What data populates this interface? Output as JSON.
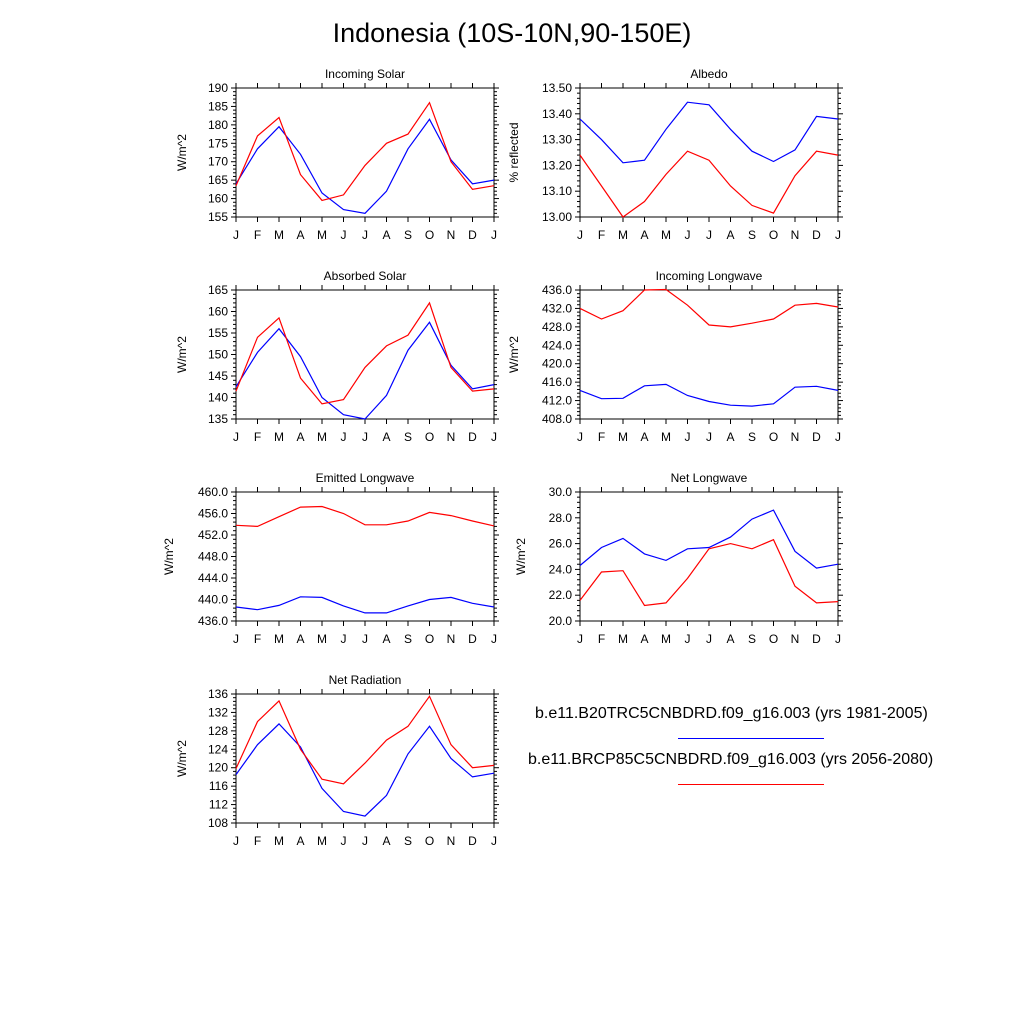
{
  "title": "Indonesia (10S-10N,90-150E)",
  "months": [
    "J",
    "F",
    "M",
    "A",
    "M",
    "J",
    "J",
    "A",
    "S",
    "O",
    "N",
    "D",
    "J"
  ],
  "colors": {
    "historical": "#0000ff",
    "future": "#ff0000"
  },
  "legend": {
    "items": [
      {
        "label": "b.e11.B20TRC5CNBDRD.f09_g16.003 (yrs 1981-2005)",
        "color": "#0000ff"
      },
      {
        "label": "b.e11.BRCP85C5CNBDRD.f09_g16.003 (yrs 2056-2080)",
        "color": "#ff0000"
      }
    ]
  },
  "chart_data": [
    {
      "type": "line",
      "title": "Incoming Solar",
      "ylabel": "W/m^2",
      "ylim": [
        155,
        190
      ],
      "yticks": [
        "155",
        "160",
        "165",
        "170",
        "175",
        "180",
        "185",
        "190"
      ],
      "series": [
        {
          "values": [
            164,
            173.5,
            179.5,
            172,
            161.5,
            157,
            156,
            162,
            173.5,
            181.5,
            170.5,
            164,
            165
          ]
        },
        {
          "values": [
            163.5,
            177,
            182,
            166.5,
            159.5,
            161,
            169,
            175,
            177.5,
            186,
            170,
            162.5,
            163.5
          ]
        }
      ]
    },
    {
      "type": "line",
      "title": "Albedo",
      "ylabel": "% reflected",
      "ylim": [
        13.0,
        13.5
      ],
      "yticks": [
        "13.00",
        "13.10",
        "13.20",
        "13.30",
        "13.40",
        "13.50"
      ],
      "series": [
        {
          "values": [
            13.38,
            13.3,
            13.21,
            13.22,
            13.34,
            13.445,
            13.435,
            13.34,
            13.255,
            13.215,
            13.26,
            13.39,
            13.38
          ]
        },
        {
          "values": [
            13.24,
            13.12,
            13.0,
            13.06,
            13.165,
            13.255,
            13.22,
            13.12,
            13.045,
            13.015,
            13.16,
            13.255,
            13.24
          ]
        }
      ]
    },
    {
      "type": "line",
      "title": "Absorbed Solar",
      "ylabel": "W/m^2",
      "ylim": [
        135,
        165
      ],
      "yticks": [
        "135",
        "140",
        "145",
        "150",
        "155",
        "160",
        "165"
      ],
      "series": [
        {
          "values": [
            142.5,
            150.5,
            156,
            149.5,
            140,
            136,
            135,
            140.5,
            151,
            157.5,
            147.5,
            142,
            143
          ]
        },
        {
          "values": [
            141.5,
            154,
            158.5,
            144.5,
            138.5,
            139.5,
            147,
            152,
            154.5,
            162,
            147,
            141.5,
            142
          ]
        }
      ]
    },
    {
      "type": "line",
      "title": "Incoming Longwave",
      "ylabel": "W/m^2",
      "ylim": [
        408,
        436
      ],
      "yticks": [
        "408.0",
        "412.0",
        "416.0",
        "420.0",
        "424.0",
        "428.0",
        "432.0",
        "436.0"
      ],
      "series": [
        {
          "values": [
            414.2,
            412.4,
            412.5,
            415.2,
            415.5,
            413.1,
            411.8,
            411.0,
            410.8,
            411.3,
            414.9,
            415.1,
            414.2
          ]
        },
        {
          "values": [
            432,
            429.7,
            431.5,
            436,
            436.1,
            432.7,
            428.4,
            428,
            428.8,
            429.7,
            432.7,
            433.1,
            432.3
          ]
        }
      ]
    },
    {
      "type": "line",
      "title": "Emitted Longwave",
      "ylabel": "W/m^2",
      "ylim": [
        436,
        460
      ],
      "yticks": [
        "436.0",
        "440.0",
        "444.0",
        "448.0",
        "452.0",
        "456.0",
        "460.0"
      ],
      "series": [
        {
          "values": [
            438.6,
            438.1,
            438.9,
            440.5,
            440.4,
            438.8,
            437.5,
            437.5,
            438.8,
            440.0,
            440.4,
            439.3,
            438.6
          ]
        },
        {
          "values": [
            453.8,
            453.6,
            455.4,
            457.2,
            457.3,
            456.0,
            453.9,
            453.9,
            454.6,
            456.2,
            455.6,
            454.6,
            453.7
          ]
        }
      ]
    },
    {
      "type": "line",
      "title": "Net Longwave",
      "ylabel": "W/m^2",
      "ylim": [
        20,
        30
      ],
      "yticks": [
        "20.0",
        "22.0",
        "24.0",
        "26.0",
        "28.0",
        "30.0"
      ],
      "series": [
        {
          "values": [
            24.3,
            25.7,
            26.4,
            25.2,
            24.7,
            25.6,
            25.7,
            26.5,
            27.9,
            28.6,
            25.4,
            24.1,
            24.4
          ]
        },
        {
          "values": [
            21.6,
            23.8,
            23.9,
            21.2,
            21.4,
            23.3,
            25.6,
            26.0,
            25.6,
            26.3,
            22.7,
            21.4,
            21.5
          ]
        }
      ]
    },
    {
      "type": "line",
      "title": "Net Radiation",
      "ylabel": "W/m^2",
      "ylim": [
        108,
        136
      ],
      "yticks": [
        "108",
        "112",
        "116",
        "120",
        "124",
        "128",
        "132",
        "136"
      ],
      "series": [
        {
          "values": [
            118.5,
            125,
            129.5,
            124.5,
            115.5,
            110.5,
            109.5,
            114,
            123,
            129,
            122,
            118,
            118.8
          ]
        },
        {
          "values": [
            119.8,
            130,
            134.5,
            124,
            117.5,
            116.5,
            121,
            126,
            129,
            135.5,
            125,
            120,
            120.5
          ]
        }
      ]
    }
  ]
}
